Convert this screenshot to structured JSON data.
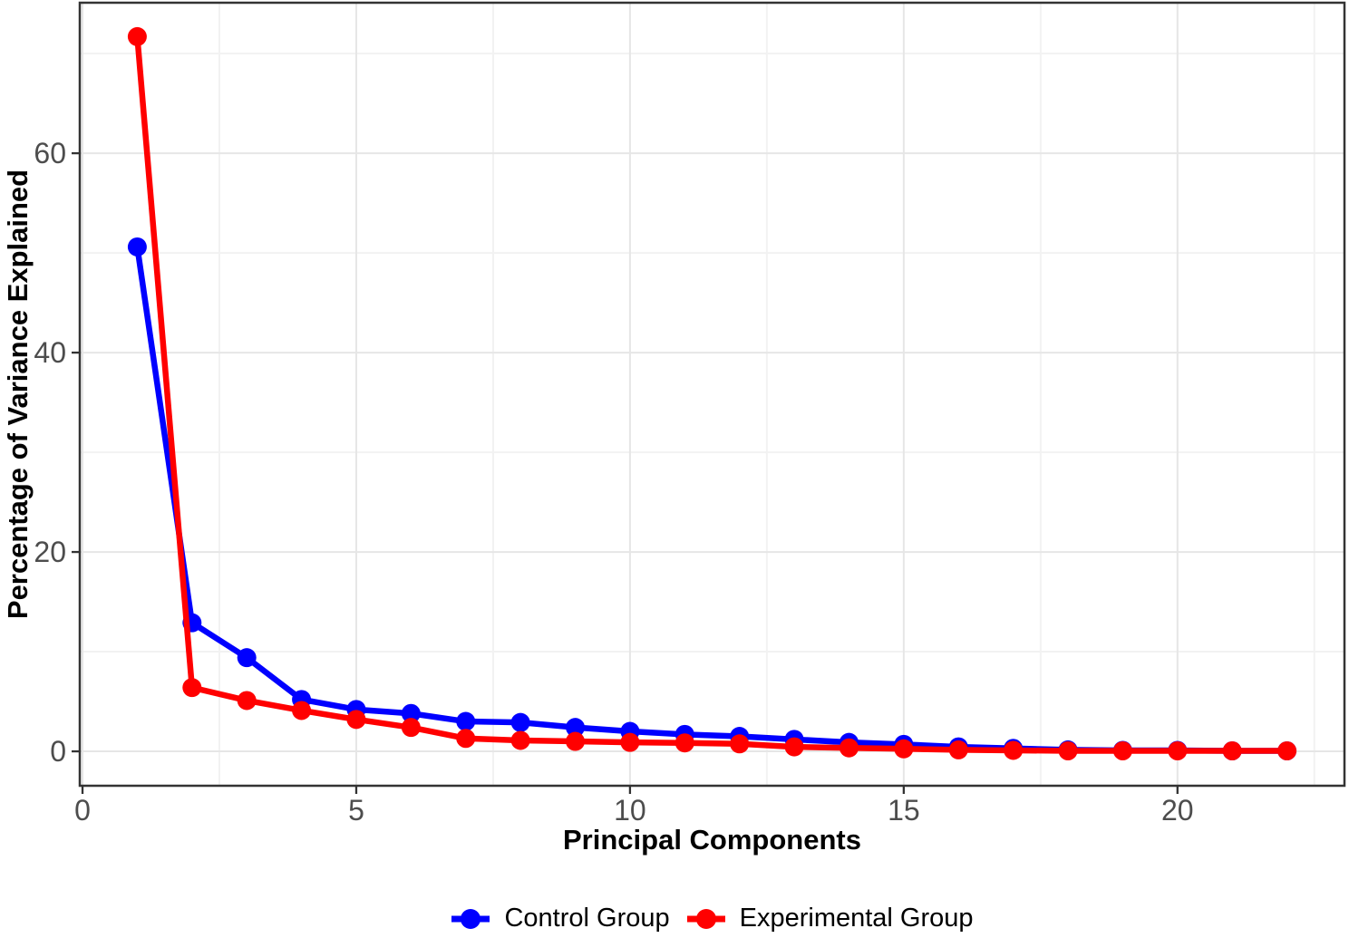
{
  "chart_data": {
    "type": "line",
    "title": "",
    "xlabel": "Principal Components",
    "ylabel": "Percentage of Variance Explained",
    "x": [
      1,
      2,
      3,
      4,
      5,
      6,
      7,
      8,
      9,
      10,
      11,
      12,
      13,
      14,
      15,
      16,
      17,
      18,
      19,
      20,
      21,
      22
    ],
    "series": [
      {
        "name": "Control Group",
        "color": "#0000FF",
        "values": [
          50.6,
          12.9,
          9.4,
          5.2,
          4.2,
          3.8,
          3.0,
          2.9,
          2.4,
          2.0,
          1.7,
          1.5,
          1.2,
          0.9,
          0.7,
          0.45,
          0.3,
          0.15,
          0.1,
          0.1,
          0.05,
          0.05
        ]
      },
      {
        "name": "Experimental Group",
        "color": "#FF0000",
        "values": [
          71.7,
          6.4,
          5.1,
          4.1,
          3.2,
          2.4,
          1.3,
          1.1,
          1.0,
          0.9,
          0.85,
          0.75,
          0.45,
          0.35,
          0.25,
          0.15,
          0.1,
          0.05,
          0.05,
          0.05,
          0.05,
          0.05
        ]
      }
    ],
    "x_ticks": [
      0,
      5,
      10,
      15,
      20
    ],
    "x_minor_ticks": [
      2.5,
      7.5,
      12.5,
      17.5,
      22.5
    ],
    "y_ticks": [
      0,
      20,
      40,
      60
    ],
    "y_minor_ticks": [
      10,
      30,
      50,
      70
    ],
    "xlim": [
      -0.05,
      23.05
    ],
    "ylim": [
      -3.45,
      75.1
    ],
    "grid": "major+minor",
    "legend_position": "bottom",
    "colors": {
      "axis_text": "#4D4D4D",
      "panel_border": "#333333",
      "tick_mark": "#333333",
      "grid_major": "#E6E6E6",
      "grid_minor": "#F2F2F2",
      "background": "#FFFFFF"
    },
    "marker_radius": 10.5,
    "line_width": 6.5
  }
}
